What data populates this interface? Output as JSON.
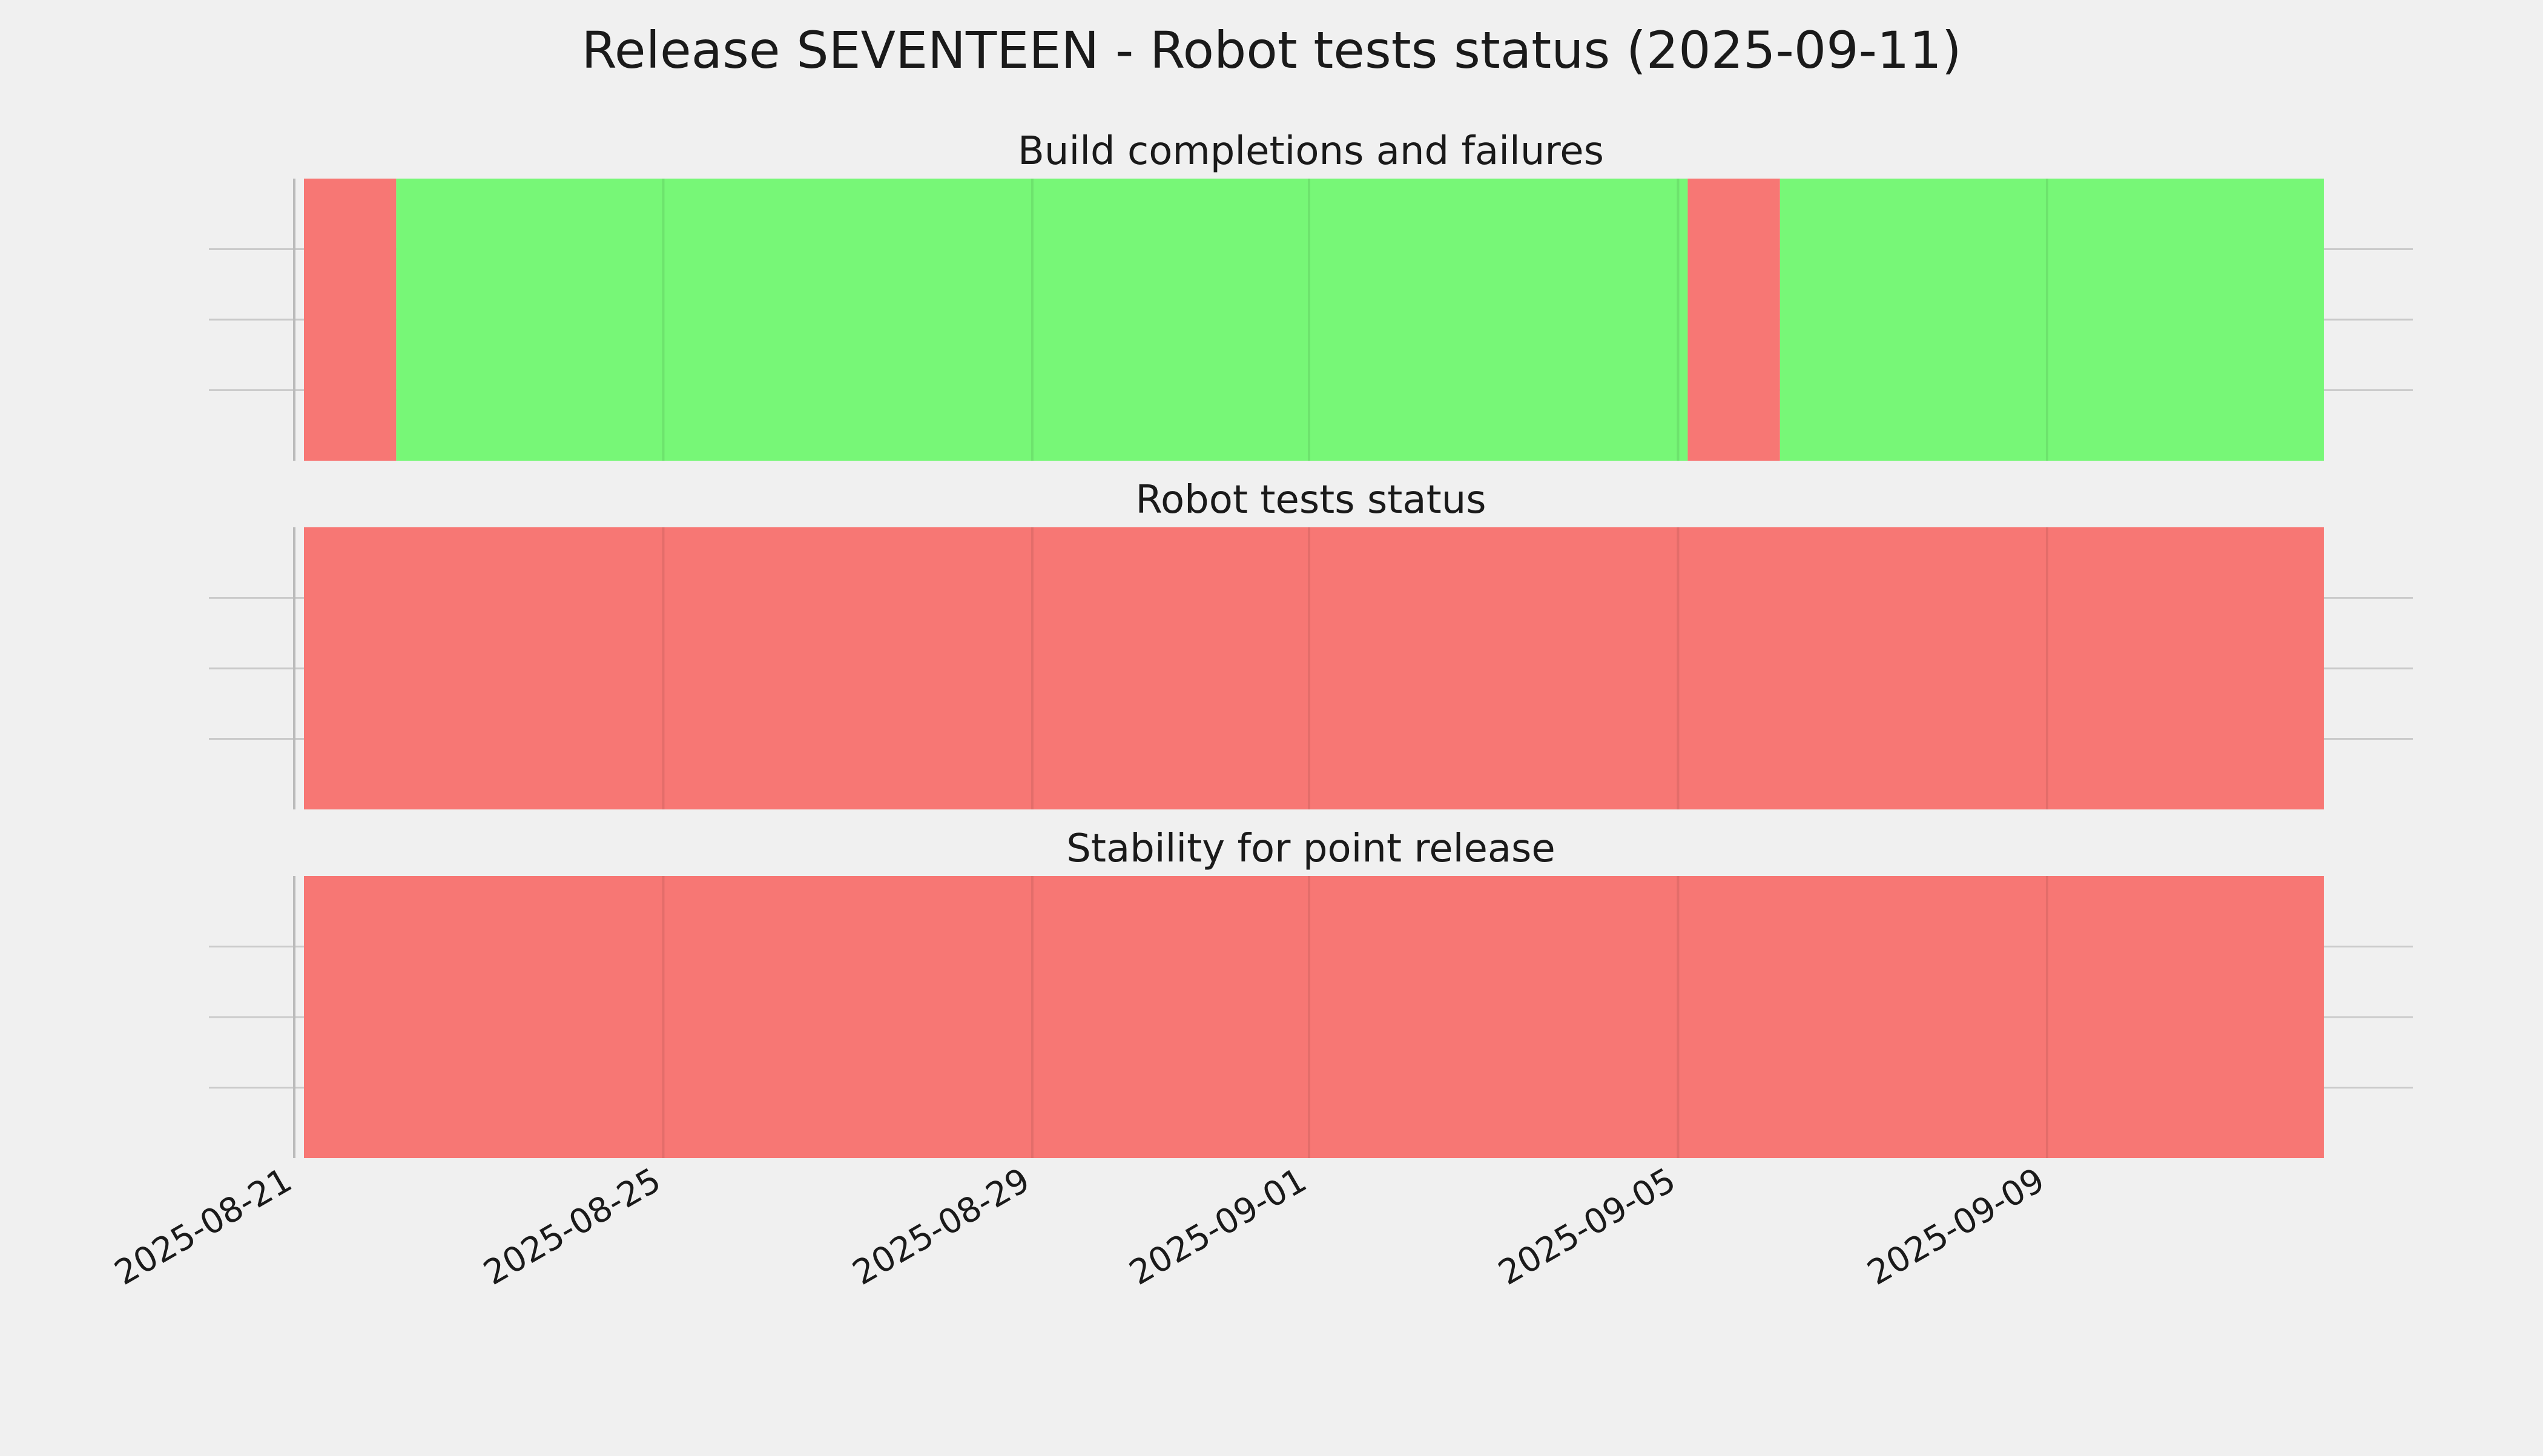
{
  "chart_data": {
    "type": "timeline",
    "title": "Release SEVENTEEN - Robot tests status (2025-09-11)",
    "x_tick_labels": [
      "2025-08-21",
      "2025-08-25",
      "2025-08-29",
      "2025-09-01",
      "2025-09-05",
      "2025-09-09"
    ],
    "x_tick_dates": [
      "2025-08-21",
      "2025-08-25",
      "2025-08-29",
      "2025-09-01",
      "2025-09-05",
      "2025-09-09"
    ],
    "xlim": [
      "2025-08-21",
      "2025-09-12"
    ],
    "grid": true,
    "status_colors": {
      "fail": "#f77774",
      "pass": "#77f777"
    },
    "panels": [
      {
        "title": "Build completions and failures",
        "segments": [
          {
            "start": "2025-08-21",
            "end": "2025-08-22",
            "status": "fail"
          },
          {
            "start": "2025-08-22",
            "end": "2025-09-05",
            "status": "pass"
          },
          {
            "start": "2025-09-05",
            "end": "2025-09-06",
            "status": "fail"
          },
          {
            "start": "2025-09-06",
            "end": "2025-09-11",
            "status": "pass"
          }
        ]
      },
      {
        "title": "Robot tests status",
        "segments": [
          {
            "start": "2025-08-21",
            "end": "2025-09-11",
            "status": "fail"
          }
        ]
      },
      {
        "title": "Stability for point release",
        "segments": [
          {
            "start": "2025-08-21",
            "end": "2025-09-11",
            "status": "fail"
          }
        ]
      }
    ]
  }
}
